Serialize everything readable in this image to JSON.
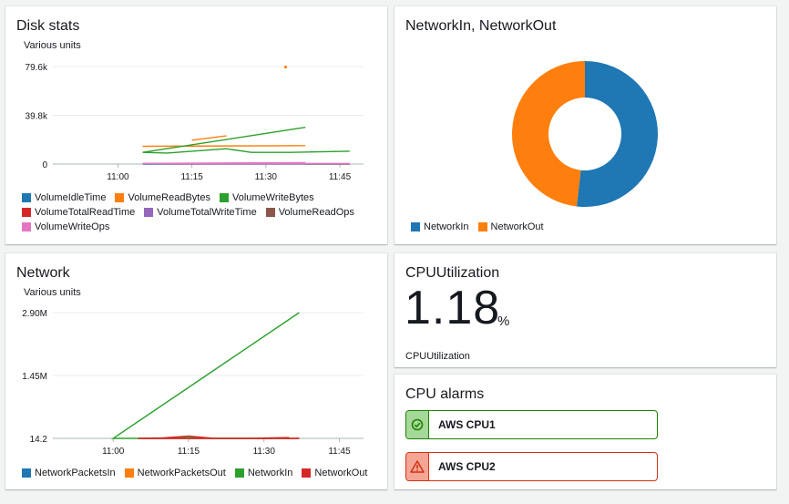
{
  "disk_stats": {
    "title": "Disk stats",
    "units_label": "Various units",
    "chart_data": {
      "type": "line",
      "ylabel": "Various units",
      "yticks": [
        "79.6k",
        "39.8k",
        "0"
      ],
      "ylim": [
        0,
        79600
      ],
      "xticks": [
        "11:00",
        "11:15",
        "11:30",
        "11:45"
      ],
      "series": [
        {
          "name": "VolumeIdleTime",
          "color": "#1f77b4",
          "points": [
            [
              10.98,
              0
            ],
            [
              11.05,
              0
            ],
            [
              11.1,
              0
            ],
            [
              11.15,
              0
            ],
            [
              11.2,
              0
            ],
            [
              11.25,
              0
            ],
            [
              11.3,
              0
            ],
            [
              11.35,
              0
            ],
            [
              11.4,
              0
            ],
            [
              11.47,
              0
            ]
          ]
        },
        {
          "name": "VolumeReadBytes",
          "color": "#ff7f0e",
          "segments": [
            [
              [
                10.98,
                15000
              ],
              [
                11.05,
                14500
              ]
            ],
            [
              [
                11.15,
                19500
              ],
              [
                11.22,
                23000
              ]
            ]
          ],
          "dots": [
            [
              11.34,
              79200
            ]
          ]
        },
        {
          "name": "VolumeWriteBytes",
          "color": "#2ca02c",
          "points": [
            [
              10.98,
              30000
            ],
            [
              11.05,
              9500
            ],
            [
              11.1,
              9000
            ],
            [
              11.15,
              10500
            ],
            [
              11.22,
              12500
            ],
            [
              11.27,
              9500
            ],
            [
              11.35,
              9500
            ],
            [
              11.47,
              10500
            ]
          ]
        },
        {
          "name": "VolumeTotalReadTime",
          "color": "#d62728",
          "points": [
            [
              10.98,
              300
            ],
            [
              11.1,
              200
            ],
            [
              11.2,
              200
            ],
            [
              11.3,
              200
            ],
            [
              11.47,
              200
            ]
          ]
        },
        {
          "name": "VolumeTotalWriteTime",
          "color": "#9467bd",
          "points": [
            [
              10.98,
              900
            ],
            [
              11.05,
              400
            ],
            [
              11.15,
              300
            ],
            [
              11.3,
              300
            ],
            [
              11.47,
              300
            ]
          ]
        },
        {
          "name": "VolumeReadOps",
          "color": "#8c564b",
          "points": [
            [
              10.98,
              100
            ],
            [
              11.47,
              100
            ]
          ]
        },
        {
          "name": "VolumeWriteOps",
          "color": "#e377c2",
          "points": [
            [
              10.98,
              1200
            ],
            [
              11.05,
              500
            ],
            [
              11.15,
              400
            ],
            [
              11.3,
              400
            ],
            [
              11.47,
              400
            ]
          ]
        }
      ]
    }
  },
  "network_inout": {
    "title": "NetworkIn, NetworkOut",
    "chart_data": {
      "type": "pie",
      "style": "donut",
      "slices": [
        {
          "name": "NetworkIn",
          "color": "#1f77b4",
          "value": 51.8
        },
        {
          "name": "NetworkOut",
          "color": "#ff7f0e",
          "value": 48.2
        }
      ]
    }
  },
  "network": {
    "title": "Network",
    "units_label": "Various units",
    "chart_data": {
      "type": "line",
      "ylabel": "Various units",
      "yticks": [
        "2.90M",
        "1.45M",
        "14.2"
      ],
      "ylim": [
        14.2,
        2900000
      ],
      "xticks": [
        "11:00",
        "11:15",
        "11:30",
        "11:45"
      ],
      "series": [
        {
          "name": "NetworkPacketsIn",
          "color": "#1f77b4",
          "points": [
            [
              10.97,
              14.2
            ],
            [
              11.05,
              14.2
            ],
            [
              11.2,
              14.2
            ],
            [
              11.35,
              14.2
            ]
          ]
        },
        {
          "name": "NetworkPacketsOut",
          "color": "#ff7f0e",
          "points": [
            [
              10.97,
              14.2
            ],
            [
              11.05,
              14.2
            ],
            [
              11.2,
              14.2
            ],
            [
              11.35,
              14.2
            ]
          ]
        },
        {
          "name": "NetworkIn",
          "color": "#2ca02c",
          "points": [
            [
              10.97,
              2900000
            ],
            [
              11.0,
              14.2
            ],
            [
              11.1,
              14.2
            ],
            [
              11.15,
              20000
            ],
            [
              11.2,
              14.2
            ],
            [
              11.3,
              14.2
            ],
            [
              11.35,
              14.2
            ]
          ]
        },
        {
          "name": "NetworkOut",
          "color": "#d62728",
          "points": [
            [
              10.97,
              14.2
            ],
            [
              11.05,
              14.2
            ],
            [
              11.1,
              10000
            ],
            [
              11.15,
              55000
            ],
            [
              11.2,
              14.2
            ],
            [
              11.27,
              14.2
            ],
            [
              11.35,
              18000
            ]
          ]
        }
      ]
    }
  },
  "cpu_utilization": {
    "title": "CPUUtilization",
    "value": "1.18",
    "unit": "%",
    "metric_label": "CPUUtilization"
  },
  "cpu_alarms": {
    "title": "CPU alarms",
    "alarms": [
      {
        "name": "AWS CPU1",
        "state": "ok",
        "icon": "check-circle-icon"
      },
      {
        "name": "AWS CPU2",
        "state": "alarm",
        "icon": "warning-triangle-icon"
      }
    ]
  }
}
